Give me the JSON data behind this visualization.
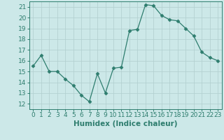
{
  "x": [
    0,
    1,
    2,
    3,
    4,
    5,
    6,
    7,
    8,
    9,
    10,
    11,
    12,
    13,
    14,
    15,
    16,
    17,
    18,
    19,
    20,
    21,
    22,
    23
  ],
  "y": [
    15.5,
    16.5,
    15.0,
    15.0,
    14.3,
    13.7,
    12.8,
    12.2,
    14.8,
    13.0,
    15.3,
    15.4,
    18.8,
    18.9,
    21.2,
    21.1,
    20.2,
    19.8,
    19.7,
    19.0,
    18.3,
    16.8,
    16.3,
    16.0
  ],
  "line_color": "#2e7d6e",
  "marker": "D",
  "marker_size": 2.5,
  "bg_color": "#cce8e8",
  "grid_color": "#b0cece",
  "xlabel": "Humidex (Indice chaleur)",
  "xlim": [
    -0.5,
    23.5
  ],
  "ylim": [
    11.5,
    21.5
  ],
  "yticks": [
    12,
    13,
    14,
    15,
    16,
    17,
    18,
    19,
    20,
    21
  ],
  "xticks": [
    0,
    1,
    2,
    3,
    4,
    5,
    6,
    7,
    8,
    9,
    10,
    11,
    12,
    13,
    14,
    15,
    16,
    17,
    18,
    19,
    20,
    21,
    22,
    23
  ],
  "tick_label_color": "#2e7d6e",
  "axis_color": "#2e7d6e",
  "label_fontsize": 7.5,
  "tick_fontsize": 6.5
}
